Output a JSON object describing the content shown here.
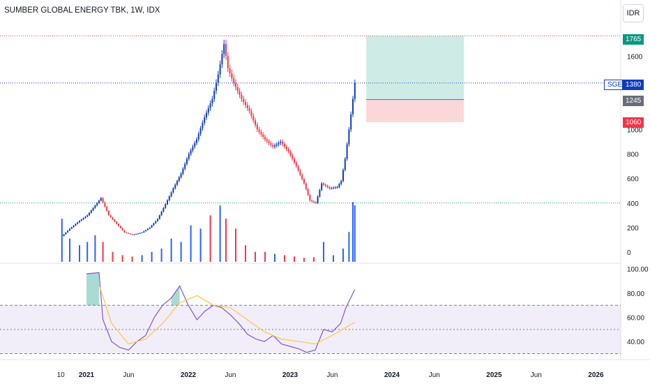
{
  "header": {
    "title": "SUMBER GLOBAL ENERGY TBK, 1W, IDX",
    "currency": "IDR"
  },
  "colors": {
    "up": "#0e3bbd",
    "down": "#f23645",
    "vol_up": "#2962ff",
    "vol_down": "#f23645",
    "rsi": "#7e57c2",
    "rsi_ma": "#f7c845",
    "target": "#089981",
    "stop": "#f23645"
  },
  "tags": {
    "symbol": "SGER",
    "last": "1380",
    "target": "1765",
    "entry": "1245",
    "stop": "1060"
  },
  "chart_data": [
    {
      "type": "candlestick",
      "title": "SUMBER GLOBAL ENERGY TBK, 1W, IDX",
      "x_ticks": [
        "10",
        "2021",
        "Jun",
        "2022",
        "Jun",
        "2023",
        "Jun",
        "2024",
        "Jun",
        "2025",
        "Jun",
        "2026"
      ],
      "x_tick_dates": [
        "2020-10-01",
        "2021-01-01",
        "2021-06-01",
        "2022-01-01",
        "2022-06-01",
        "2023-01-01",
        "2023-06-01",
        "2024-01-01",
        "2024-06-01",
        "2025-01-01",
        "2025-06-01",
        "2026-01-01"
      ],
      "y_ticks": [
        0,
        200,
        400,
        600,
        800,
        1000,
        1600
      ],
      "ylim": [
        -80,
        1830
      ],
      "price_series": [
        {
          "date": "2020-10-05",
          "close": 130
        },
        {
          "date": "2020-11-02",
          "close": 190
        },
        {
          "date": "2020-12-07",
          "close": 255
        },
        {
          "date": "2021-01-04",
          "close": 300
        },
        {
          "date": "2021-02-01",
          "close": 380
        },
        {
          "date": "2021-02-22",
          "close": 440
        },
        {
          "date": "2021-03-22",
          "close": 300
        },
        {
          "date": "2021-04-19",
          "close": 230
        },
        {
          "date": "2021-05-17",
          "close": 160
        },
        {
          "date": "2021-06-14",
          "close": 140
        },
        {
          "date": "2021-07-19",
          "close": 160
        },
        {
          "date": "2021-08-16",
          "close": 200
        },
        {
          "date": "2021-09-13",
          "close": 270
        },
        {
          "date": "2021-10-11",
          "close": 390
        },
        {
          "date": "2021-11-08",
          "close": 520
        },
        {
          "date": "2021-12-06",
          "close": 640
        },
        {
          "date": "2022-01-03",
          "close": 800
        },
        {
          "date": "2022-01-31",
          "close": 920
        },
        {
          "date": "2022-02-28",
          "close": 1100
        },
        {
          "date": "2022-03-28",
          "close": 1250
        },
        {
          "date": "2022-04-18",
          "close": 1450
        },
        {
          "date": "2022-05-09",
          "close": 1700
        },
        {
          "date": "2022-05-23",
          "close": 1500
        },
        {
          "date": "2022-06-13",
          "close": 1380
        },
        {
          "date": "2022-07-11",
          "close": 1250
        },
        {
          "date": "2022-08-08",
          "close": 1150
        },
        {
          "date": "2022-09-05",
          "close": 1000
        },
        {
          "date": "2022-10-03",
          "close": 920
        },
        {
          "date": "2022-10-31",
          "close": 860
        },
        {
          "date": "2022-11-28",
          "close": 900
        },
        {
          "date": "2022-12-26",
          "close": 820
        },
        {
          "date": "2023-01-23",
          "close": 700
        },
        {
          "date": "2023-02-20",
          "close": 560
        },
        {
          "date": "2023-03-13",
          "close": 420
        },
        {
          "date": "2023-04-03",
          "close": 400
        },
        {
          "date": "2023-04-24",
          "close": 560
        },
        {
          "date": "2023-05-22",
          "close": 520
        },
        {
          "date": "2023-06-19",
          "close": 530
        },
        {
          "date": "2023-07-03",
          "close": 580
        },
        {
          "date": "2023-07-17",
          "close": 760
        },
        {
          "date": "2023-07-31",
          "close": 1000
        },
        {
          "date": "2023-08-14",
          "close": 1250
        },
        {
          "date": "2023-08-21",
          "close": 1380
        }
      ],
      "last_price": 1380,
      "horizontal_lines": [
        1765,
        1380,
        400
      ],
      "position": {
        "start_date": "2023-10-01",
        "end_date": "2024-09-15",
        "target": 1765,
        "entry": 1245,
        "stop": 1060
      },
      "volume_series": [
        {
          "date": "2020-10-05",
          "value": 0.65,
          "dir": "up"
        },
        {
          "date": "2020-11-02",
          "value": 0.35,
          "dir": "up"
        },
        {
          "date": "2020-12-07",
          "value": 0.25,
          "dir": "up"
        },
        {
          "date": "2021-01-04",
          "value": 0.3,
          "dir": "up"
        },
        {
          "date": "2021-02-01",
          "value": 0.4,
          "dir": "up"
        },
        {
          "date": "2021-03-01",
          "value": 0.3,
          "dir": "down"
        },
        {
          "date": "2021-04-05",
          "value": 0.15,
          "dir": "down"
        },
        {
          "date": "2021-05-10",
          "value": 0.1,
          "dir": "down"
        },
        {
          "date": "2021-06-14",
          "value": 0.08,
          "dir": "down"
        },
        {
          "date": "2021-07-19",
          "value": 0.1,
          "dir": "up"
        },
        {
          "date": "2021-08-23",
          "value": 0.15,
          "dir": "up"
        },
        {
          "date": "2021-09-27",
          "value": 0.2,
          "dir": "up"
        },
        {
          "date": "2021-11-01",
          "value": 0.35,
          "dir": "up"
        },
        {
          "date": "2021-12-06",
          "value": 0.3,
          "dir": "up"
        },
        {
          "date": "2022-01-10",
          "value": 0.55,
          "dir": "up"
        },
        {
          "date": "2022-02-14",
          "value": 0.5,
          "dir": "up"
        },
        {
          "date": "2022-03-21",
          "value": 0.7,
          "dir": "down"
        },
        {
          "date": "2022-04-25",
          "value": 0.85,
          "dir": "up"
        },
        {
          "date": "2022-05-16",
          "value": 0.65,
          "dir": "down"
        },
        {
          "date": "2022-06-20",
          "value": 0.5,
          "dir": "down"
        },
        {
          "date": "2022-07-25",
          "value": 0.25,
          "dir": "down"
        },
        {
          "date": "2022-08-29",
          "value": 0.15,
          "dir": "down"
        },
        {
          "date": "2022-10-03",
          "value": 0.15,
          "dir": "down"
        },
        {
          "date": "2022-11-07",
          "value": 0.12,
          "dir": "up"
        },
        {
          "date": "2022-12-12",
          "value": 0.1,
          "dir": "down"
        },
        {
          "date": "2023-01-16",
          "value": 0.08,
          "dir": "down"
        },
        {
          "date": "2023-02-20",
          "value": 0.06,
          "dir": "down"
        },
        {
          "date": "2023-03-27",
          "value": 0.07,
          "dir": "down"
        },
        {
          "date": "2023-05-01",
          "value": 0.3,
          "dir": "up"
        },
        {
          "date": "2023-06-05",
          "value": 0.1,
          "dir": "up"
        },
        {
          "date": "2023-07-10",
          "value": 0.2,
          "dir": "up"
        },
        {
          "date": "2023-07-31",
          "value": 0.45,
          "dir": "up"
        },
        {
          "date": "2023-08-14",
          "value": 0.9,
          "dir": "up"
        },
        {
          "date": "2023-08-21",
          "value": 0.85,
          "dir": "up"
        }
      ]
    },
    {
      "type": "line",
      "title": "RSI",
      "y_ticks": [
        40,
        60,
        80,
        100
      ],
      "y_tick_labels": [
        "40.00",
        "60.00",
        "80.00",
        "100.00"
      ],
      "ylim": [
        28,
        103
      ],
      "band": [
        30,
        70
      ],
      "midline": 50,
      "series": [
        {
          "values": [
            {
              "date": "2021-01-01",
              "value": 96
            },
            {
              "date": "2021-02-15",
              "value": 97
            },
            {
              "date": "2021-03-01",
              "value": 58
            },
            {
              "date": "2021-04-01",
              "value": 40
            },
            {
              "date": "2021-05-01",
              "value": 35
            },
            {
              "date": "2021-06-01",
              "value": 33
            },
            {
              "date": "2021-07-01",
              "value": 40
            },
            {
              "date": "2021-08-01",
              "value": 45
            },
            {
              "date": "2021-09-01",
              "value": 60
            },
            {
              "date": "2021-10-01",
              "value": 70
            },
            {
              "date": "2021-11-01",
              "value": 76
            },
            {
              "date": "2021-12-01",
              "value": 86
            },
            {
              "date": "2022-01-01",
              "value": 70
            },
            {
              "date": "2022-02-01",
              "value": 58
            },
            {
              "date": "2022-03-01",
              "value": 65
            },
            {
              "date": "2022-04-01",
              "value": 70
            },
            {
              "date": "2022-05-01",
              "value": 68
            },
            {
              "date": "2022-06-01",
              "value": 62
            },
            {
              "date": "2022-07-01",
              "value": 55
            },
            {
              "date": "2022-08-01",
              "value": 46
            },
            {
              "date": "2022-09-01",
              "value": 42
            },
            {
              "date": "2022-10-01",
              "value": 40
            },
            {
              "date": "2022-11-01",
              "value": 45
            },
            {
              "date": "2022-12-01",
              "value": 38
            },
            {
              "date": "2023-01-01",
              "value": 36
            },
            {
              "date": "2023-02-01",
              "value": 34
            },
            {
              "date": "2023-03-01",
              "value": 31
            },
            {
              "date": "2023-04-01",
              "value": 33
            },
            {
              "date": "2023-05-01",
              "value": 50
            },
            {
              "date": "2023-06-01",
              "value": 48
            },
            {
              "date": "2023-07-01",
              "value": 55
            },
            {
              "date": "2023-07-20",
              "value": 68
            },
            {
              "date": "2023-08-21",
              "value": 83
            }
          ]
        },
        {
          "values": [
            {
              "date": "2021-02-15",
              "value": 87
            },
            {
              "date": "2021-04-01",
              "value": 55
            },
            {
              "date": "2021-06-01",
              "value": 38
            },
            {
              "date": "2021-08-01",
              "value": 42
            },
            {
              "date": "2021-10-01",
              "value": 55
            },
            {
              "date": "2021-12-01",
              "value": 72
            },
            {
              "date": "2022-02-01",
              "value": 78
            },
            {
              "date": "2022-04-01",
              "value": 70
            },
            {
              "date": "2022-06-01",
              "value": 68
            },
            {
              "date": "2022-08-01",
              "value": 58
            },
            {
              "date": "2022-10-01",
              "value": 48
            },
            {
              "date": "2022-12-01",
              "value": 42
            },
            {
              "date": "2023-02-01",
              "value": 40
            },
            {
              "date": "2023-04-01",
              "value": 38
            },
            {
              "date": "2023-06-01",
              "value": 45
            },
            {
              "date": "2023-08-21",
              "value": 56
            }
          ]
        }
      ]
    }
  ]
}
